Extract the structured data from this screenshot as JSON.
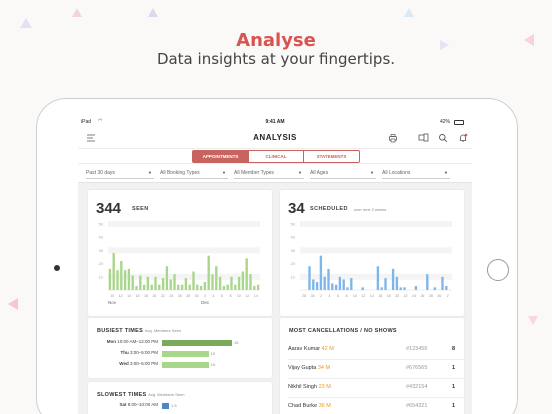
{
  "hero": {
    "title": "Analyse",
    "subtitle": "Data insights at your fingertips."
  },
  "status_bar": {
    "device": "iPad",
    "wifi_icon": "wifi-icon",
    "time": "9:41 AM",
    "battery": "42%"
  },
  "app_bar": {
    "title": "ANALYSIS",
    "icons": [
      "menu-icon",
      "print-icon",
      "devices-icon",
      "search-icon",
      "bell-icon"
    ]
  },
  "tabs": [
    {
      "label": "APPOINTMENTS",
      "active": true
    },
    {
      "label": "CLINICAL",
      "active": false
    },
    {
      "label": "STATEMENTS",
      "active": false
    }
  ],
  "filters": [
    {
      "label": "Past 30 days"
    },
    {
      "label": "All Booking Types"
    },
    {
      "label": "All Member Types"
    },
    {
      "label": "All Ages"
    },
    {
      "label": "All Locations"
    }
  ],
  "seen_card": {
    "count": "344",
    "label": "SEEN"
  },
  "scheduled_card": {
    "count": "34",
    "label": "SCHEDULED",
    "note": "over next 2 weeks"
  },
  "busiest": {
    "title": "BUSIEST TIMES",
    "subtitle": "Avg. Members Seen",
    "rows": [
      {
        "day": "Mon",
        "time": "10:00 AM–12:00 PM",
        "value": 15
      },
      {
        "day": "Thu",
        "time": "3:00–5:00 PM",
        "value": 10
      },
      {
        "day": "Wed",
        "time": "3:00–5:00 PM",
        "value": 10
      }
    ]
  },
  "slowest": {
    "title": "SLOWEST TIMES",
    "subtitle": "Avg. Members Seen",
    "rows": [
      {
        "day": "Sat",
        "time": "8:00–10:00 AM",
        "value": 1.5
      }
    ]
  },
  "cancellations": {
    "title": "MOST CANCELLATIONS / NO SHOWS",
    "rows": [
      {
        "name": "Aarav Kumar",
        "age": "42 M",
        "id": "#123456",
        "count": "8"
      },
      {
        "name": "Vijay Gupta",
        "age": "34 M",
        "id": "#676565",
        "count": "1"
      },
      {
        "name": "Nikhil Singh",
        "age": "23 M",
        "id": "#432154",
        "count": "1"
      },
      {
        "name": "Chad Burke",
        "age": "36 M",
        "id": "#654321",
        "count": "1"
      }
    ]
  },
  "colors": {
    "accent": "#c9635f",
    "seen_bar": "#a8d68a",
    "scheduled_bar": "#7eb6ea",
    "busiest_top": "#7aa95c",
    "busiest_other": "#a8d68a",
    "slowest_bar": "#4f86c6"
  },
  "chart_data": [
    {
      "type": "bar",
      "title": "344 SEEN",
      "x_month_labels": [
        "Nov",
        "Dec"
      ],
      "x_tick_labels": [
        "10",
        "12",
        "14",
        "16",
        "18",
        "20",
        "22",
        "24",
        "26",
        "28",
        "30",
        "2",
        "4",
        "6",
        "8",
        "10",
        "12",
        "14"
      ],
      "y_tick_labels": [
        "50",
        "40",
        "30",
        "20",
        "10"
      ],
      "ylim": [
        0,
        50
      ],
      "values": [
        16,
        28,
        15,
        22,
        15,
        16,
        11,
        3,
        11,
        4,
        10,
        4,
        10,
        4,
        9,
        18,
        8,
        12,
        4,
        4,
        9,
        4,
        14,
        4,
        3,
        6,
        26,
        12,
        18,
        10,
        3,
        4,
        10,
        4,
        10,
        14,
        24,
        12,
        3,
        4
      ]
    },
    {
      "type": "bar",
      "title": "34 SCHEDULED",
      "x_tick_labels": [
        "28",
        "30",
        "2",
        "4",
        "6",
        "8",
        "10",
        "12",
        "14",
        "16",
        "18",
        "20",
        "22",
        "24",
        "26",
        "28",
        "30",
        "2"
      ],
      "y_tick_labels": [
        "50",
        "40",
        "30",
        "20",
        "10"
      ],
      "ylim": [
        0,
        50
      ],
      "values": [
        0,
        0,
        18,
        8,
        6,
        26,
        10,
        16,
        5,
        4,
        10,
        8,
        2,
        9,
        0,
        0,
        2,
        0,
        0,
        0,
        18,
        2,
        9,
        0,
        16,
        10,
        2,
        2,
        0,
        0,
        3,
        0,
        0,
        12,
        0,
        2,
        0,
        10,
        3,
        0
      ]
    }
  ]
}
